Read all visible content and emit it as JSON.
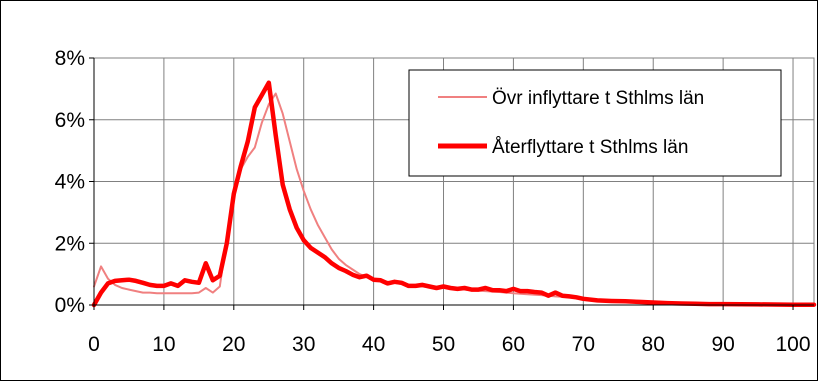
{
  "chart_data": {
    "type": "line",
    "title": "",
    "xlabel": "",
    "ylabel": "",
    "xlim": [
      0,
      103
    ],
    "ylim": [
      0,
      8
    ],
    "x_ticks": [
      0,
      10,
      20,
      30,
      40,
      50,
      60,
      70,
      80,
      90,
      100
    ],
    "x_tick_labels": [
      "0",
      "10",
      "20",
      "30",
      "40",
      "50",
      "60",
      "70",
      "80",
      "90",
      "100"
    ],
    "y_ticks": [
      0,
      2,
      4,
      6,
      8
    ],
    "y_tick_labels": [
      "0%",
      "2%",
      "4%",
      "6%",
      "8%"
    ],
    "grid": true,
    "legend_position": "top-right",
    "series": [
      {
        "name": "Övr inflyttare t Sthlms län",
        "color": "#f08080",
        "x": [
          0,
          1,
          2,
          3,
          4,
          5,
          6,
          7,
          8,
          9,
          10,
          11,
          12,
          13,
          14,
          15,
          16,
          17,
          18,
          19,
          20,
          21,
          22,
          23,
          24,
          25,
          26,
          27,
          28,
          29,
          30,
          31,
          32,
          33,
          34,
          35,
          36,
          37,
          38,
          39,
          40,
          42,
          44,
          46,
          48,
          50,
          52,
          54,
          56,
          58,
          60,
          62,
          64,
          66,
          68,
          70,
          72,
          74,
          76,
          78,
          80,
          85,
          90,
          95,
          100,
          103
        ],
        "y": [
          0.6,
          1.25,
          0.85,
          0.65,
          0.55,
          0.5,
          0.45,
          0.4,
          0.4,
          0.38,
          0.38,
          0.38,
          0.38,
          0.38,
          0.38,
          0.4,
          0.55,
          0.4,
          0.6,
          2.2,
          3.5,
          4.4,
          4.8,
          5.1,
          5.9,
          6.5,
          6.85,
          6.2,
          5.3,
          4.4,
          3.7,
          3.1,
          2.6,
          2.2,
          1.8,
          1.5,
          1.3,
          1.15,
          1.0,
          0.9,
          0.85,
          0.75,
          0.68,
          0.62,
          0.58,
          0.55,
          0.52,
          0.48,
          0.45,
          0.42,
          0.38,
          0.35,
          0.32,
          0.28,
          0.25,
          0.2,
          0.17,
          0.14,
          0.12,
          0.1,
          0.08,
          0.05,
          0.03,
          0.02,
          0.01,
          0.01
        ]
      },
      {
        "name": "Återflyttare t Sthlms län",
        "color": "#ff0000",
        "x": [
          0,
          1,
          2,
          3,
          4,
          5,
          6,
          7,
          8,
          9,
          10,
          11,
          12,
          13,
          14,
          15,
          16,
          17,
          18,
          19,
          20,
          21,
          22,
          23,
          24,
          25,
          26,
          27,
          28,
          29,
          30,
          31,
          32,
          33,
          34,
          35,
          36,
          37,
          38,
          39,
          40,
          41,
          42,
          43,
          44,
          45,
          46,
          47,
          48,
          49,
          50,
          51,
          52,
          53,
          54,
          55,
          56,
          57,
          58,
          59,
          60,
          61,
          62,
          63,
          64,
          65,
          66,
          67,
          68,
          69,
          70,
          72,
          74,
          76,
          78,
          80,
          82,
          84,
          86,
          88,
          90,
          95,
          100,
          103
        ],
        "y": [
          0.0,
          0.4,
          0.7,
          0.78,
          0.8,
          0.82,
          0.78,
          0.72,
          0.65,
          0.62,
          0.62,
          0.7,
          0.62,
          0.8,
          0.75,
          0.72,
          1.35,
          0.8,
          0.95,
          2.0,
          3.6,
          4.5,
          5.3,
          6.4,
          6.8,
          7.2,
          5.5,
          3.9,
          3.1,
          2.5,
          2.1,
          1.85,
          1.7,
          1.55,
          1.35,
          1.2,
          1.1,
          0.98,
          0.9,
          0.95,
          0.82,
          0.8,
          0.7,
          0.75,
          0.72,
          0.62,
          0.62,
          0.65,
          0.6,
          0.55,
          0.6,
          0.55,
          0.52,
          0.55,
          0.5,
          0.5,
          0.55,
          0.48,
          0.48,
          0.45,
          0.52,
          0.45,
          0.45,
          0.42,
          0.4,
          0.3,
          0.4,
          0.3,
          0.28,
          0.25,
          0.2,
          0.15,
          0.13,
          0.12,
          0.1,
          0.08,
          0.06,
          0.05,
          0.04,
          0.03,
          0.03,
          0.02,
          0.01,
          0.01
        ]
      }
    ]
  }
}
